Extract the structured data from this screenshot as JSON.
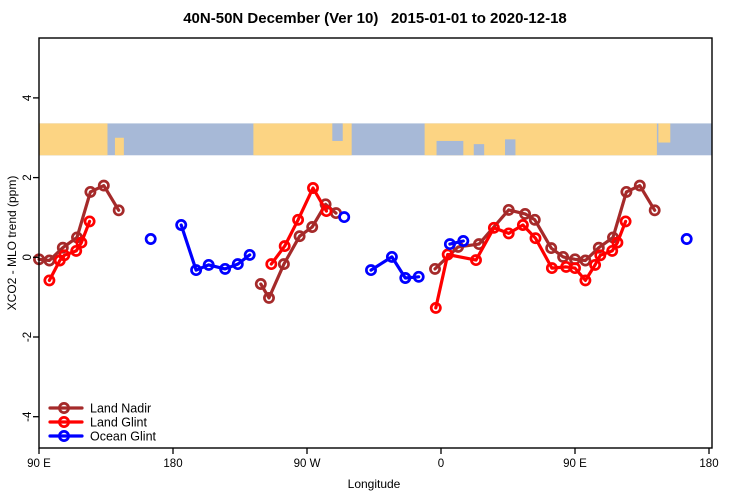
{
  "title": "40N-50N December (Ver 10)   2015-01-01 to 2020-12-18",
  "chart_data": {
    "type": "line",
    "title": "40N-50N December (Ver 10)   2015-01-01 to 2020-12-18",
    "xlabel": "Longitude",
    "ylabel": "XCO2 - MLO trend (ppm)",
    "x_axis": {
      "note": "wrapped longitude axis; deg = degrees east of the left edge (left edge = 90 E, span 450 deg)",
      "ticks": [
        {
          "label": "90 E",
          "deg": 0
        },
        {
          "label": "180",
          "deg": 90
        },
        {
          "label": "90 W",
          "deg": 180
        },
        {
          "label": "0",
          "deg": 270
        },
        {
          "label": "90 E",
          "deg": 360
        },
        {
          "label": "180",
          "deg": 450
        }
      ],
      "range_deg": [
        0,
        452
      ]
    },
    "y_axis": {
      "ticks": [
        4,
        2,
        0,
        -2,
        -4
      ],
      "range": [
        -4.79,
        5.5
      ],
      "grid": false
    },
    "legend_position": "bottom-left-inside",
    "series": [
      {
        "name": "Land Nadir",
        "color": "#A52A2A",
        "marker": "open-circle",
        "segments": [
          [
            [
              0,
              -0.05
            ],
            [
              7,
              -0.08
            ],
            [
              16,
              0.24
            ],
            [
              25.5,
              0.5
            ],
            [
              34.5,
              1.64
            ],
            [
              43.5,
              1.8
            ],
            [
              53.5,
              1.18
            ]
          ],
          [
            [
              149,
              -0.67
            ],
            [
              154.5,
              -1.02
            ],
            [
              164.5,
              -0.17
            ],
            [
              175,
              0.53
            ],
            [
              183.5,
              0.76
            ],
            [
              192.5,
              1.33
            ],
            [
              199.5,
              1.11
            ]
          ],
          [
            [
              266,
              -0.29
            ],
            [
              281.5,
              0.26
            ],
            [
              295.5,
              0.33
            ],
            [
              315.5,
              1.19
            ],
            [
              326.5,
              1.09
            ],
            [
              333,
              0.94
            ],
            [
              344,
              0.23
            ],
            [
              352,
              0.01
            ],
            [
              360,
              -0.05
            ],
            [
              367,
              -0.08
            ],
            [
              376,
              0.24
            ],
            [
              385.5,
              0.5
            ],
            [
              394.5,
              1.64
            ],
            [
              403.5,
              1.8
            ],
            [
              413.5,
              1.18
            ]
          ]
        ]
      },
      {
        "name": "Land Glint",
        "color": "#FF0000",
        "marker": "open-circle",
        "segments": [
          [
            [
              7,
              -0.58
            ],
            [
              14,
              -0.08
            ],
            [
              17,
              0.05
            ],
            [
              25,
              0.16
            ],
            [
              28.5,
              0.37
            ],
            [
              34,
              0.9
            ]
          ],
          [
            [
              156,
              -0.17
            ],
            [
              165,
              0.28
            ],
            [
              174,
              0.94
            ],
            [
              184,
              1.74
            ],
            [
              193,
              1.16
            ]
          ],
          [
            [
              266.5,
              -1.27
            ],
            [
              274.5,
              0.07
            ],
            [
              293.5,
              -0.07
            ],
            [
              305.5,
              0.74
            ],
            [
              315.5,
              0.6
            ],
            [
              325,
              0.81
            ],
            [
              333.5,
              0.48
            ],
            [
              344.5,
              -0.27
            ],
            [
              354,
              -0.24
            ],
            [
              360,
              -0.27
            ],
            [
              367,
              -0.58
            ],
            [
              373.5,
              -0.19
            ],
            [
              377,
              0.05
            ],
            [
              385,
              0.16
            ],
            [
              388.5,
              0.37
            ],
            [
              394,
              0.9
            ]
          ]
        ]
      },
      {
        "name": "Ocean Glint",
        "color": "#0000FF",
        "marker": "open-circle",
        "segments": [
          [
            [
              75,
              0.46
            ]
          ],
          [
            [
              95.5,
              0.81
            ],
            [
              105.5,
              -0.32
            ],
            [
              114,
              -0.19
            ],
            [
              125,
              -0.29
            ],
            [
              133.5,
              -0.17
            ],
            [
              141.5,
              0.06
            ]
          ],
          [
            [
              205,
              1.01
            ]
          ],
          [
            [
              223,
              -0.32
            ],
            [
              237,
              0.01
            ],
            [
              246,
              -0.52
            ],
            [
              255,
              -0.49
            ]
          ],
          [
            [
              276,
              0.33
            ],
            [
              285,
              0.41
            ]
          ],
          [
            [
              435,
              0.46
            ]
          ]
        ]
      }
    ],
    "map_band": {
      "description": "world land/ocean strip for the 40N-50N latitude belt",
      "top_value": 3.36,
      "bottom_value": 2.56,
      "ocean_color": "#A7B9D7",
      "land_color": "#FCD483",
      "land_segments_deg": [
        [
          0,
          46
        ],
        [
          144,
          210
        ],
        [
          259,
          415
        ]
      ],
      "detail_chips": [
        {
          "from_deg": 51,
          "to_deg": 57,
          "kind": "land",
          "frac_top": 0.45,
          "frac_bottom": 1.0
        },
        {
          "from_deg": 197,
          "to_deg": 204,
          "kind": "ocean",
          "frac_top": 0.0,
          "frac_bottom": 0.55
        },
        {
          "from_deg": 267,
          "to_deg": 285,
          "kind": "ocean",
          "frac_top": 0.55,
          "frac_bottom": 1.0
        },
        {
          "from_deg": 292,
          "to_deg": 299,
          "kind": "ocean",
          "frac_top": 0.65,
          "frac_bottom": 1.0
        },
        {
          "from_deg": 313,
          "to_deg": 320,
          "kind": "ocean",
          "frac_top": 0.5,
          "frac_bottom": 1.0
        },
        {
          "from_deg": 416,
          "to_deg": 424,
          "kind": "land",
          "frac_top": 0.0,
          "frac_bottom": 0.6
        }
      ]
    }
  }
}
